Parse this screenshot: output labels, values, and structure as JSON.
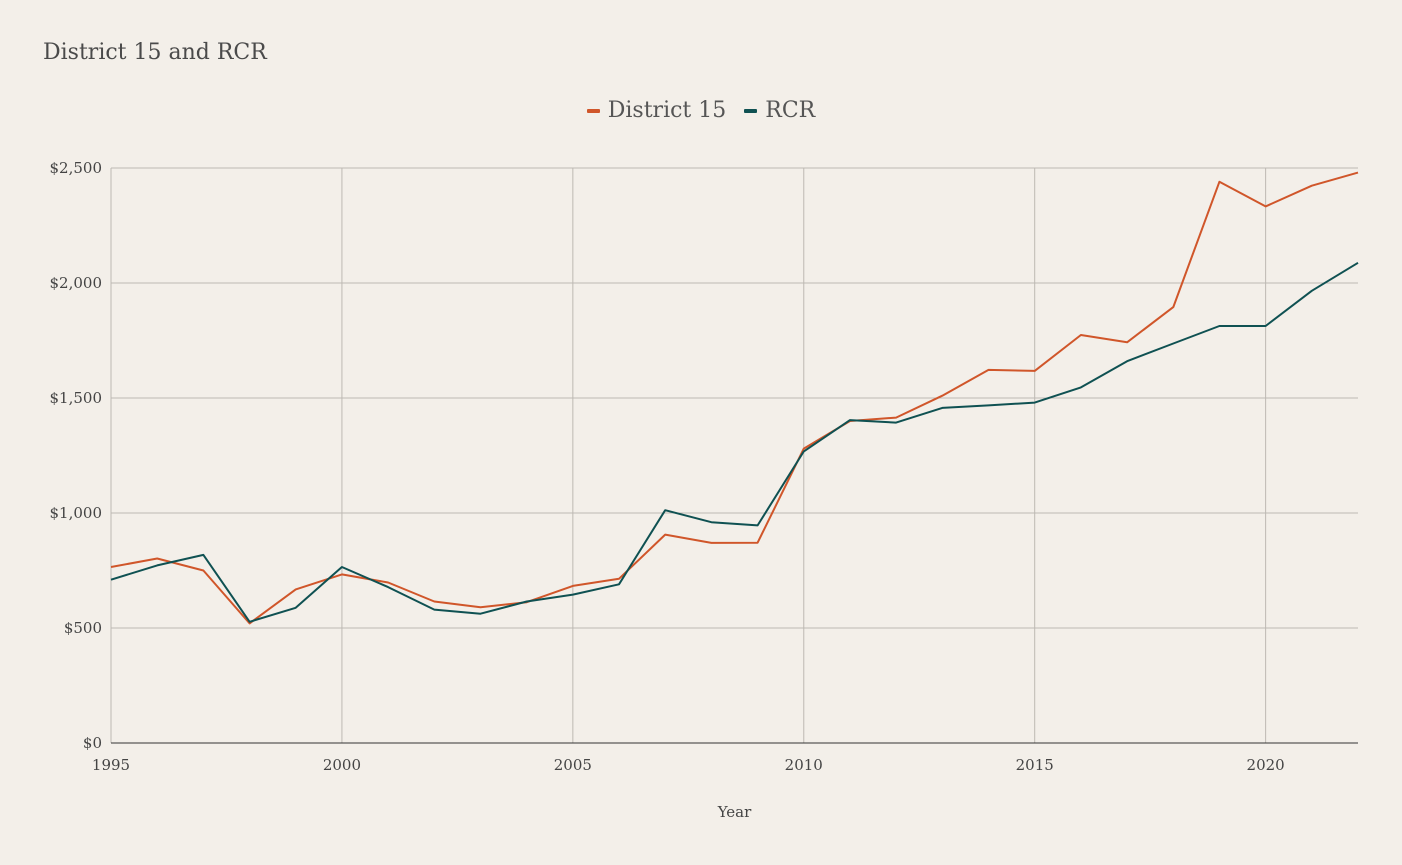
{
  "chart_data": {
    "type": "line",
    "title": "District 15 and RCR",
    "xlabel": "Year",
    "ylabel": "",
    "xlim": [
      1995,
      2022
    ],
    "ylim": [
      0,
      2500
    ],
    "x_ticks": [
      1995,
      2000,
      2005,
      2010,
      2015,
      2020
    ],
    "x_tick_labels": [
      "1995",
      "2000",
      "2005",
      "2010",
      "2015",
      "2020"
    ],
    "y_ticks": [
      0,
      500,
      1000,
      1500,
      2000,
      2500
    ],
    "y_tick_labels": [
      "$0",
      "$500",
      "$1,000",
      "$1,500",
      "$2,000",
      "$2,500"
    ],
    "grid": true,
    "legend_position": "top-center",
    "x": [
      1995,
      1996,
      1997,
      1998,
      1999,
      2000,
      2001,
      2002,
      2003,
      2004,
      2005,
      2006,
      2007,
      2008,
      2009,
      2010,
      2011,
      2012,
      2013,
      2014,
      2015,
      2016,
      2017,
      2018,
      2019,
      2020,
      2021,
      2022
    ],
    "series": [
      {
        "name": "District 15",
        "color": "#d0562a",
        "values": [
          765,
          802,
          750,
          520,
          668,
          733,
          698,
          615,
          590,
          612,
          683,
          714,
          906,
          870,
          871,
          1280,
          1400,
          1415,
          1510,
          1622,
          1618,
          1774,
          1742,
          1895,
          2440,
          2333,
          2423,
          2480
        ]
      },
      {
        "name": "RCR",
        "color": "#0f5152",
        "values": [
          710,
          772,
          818,
          527,
          588,
          765,
          678,
          580,
          562,
          615,
          645,
          690,
          1012,
          960,
          946,
          1268,
          1404,
          1393,
          1457,
          1468,
          1480,
          1546,
          1660,
          1737,
          1813,
          1813,
          1966,
          2088
        ]
      }
    ]
  }
}
